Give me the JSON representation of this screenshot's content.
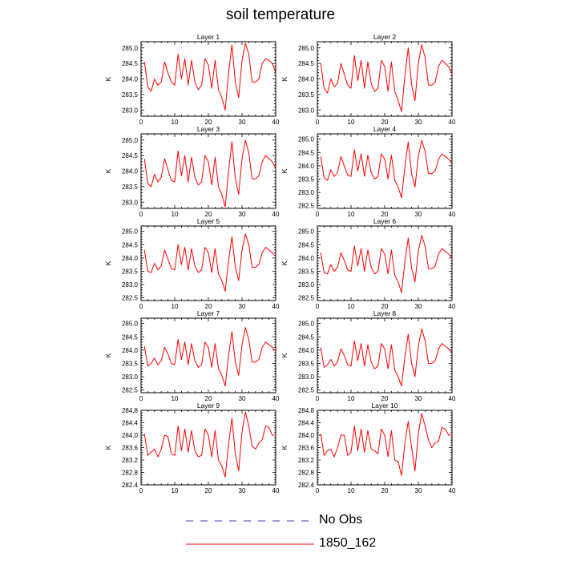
{
  "figure": {
    "title": "soil temperature",
    "legend": [
      {
        "label": "No Obs",
        "color": "#3a3ab0",
        "style": "dashed"
      },
      {
        "label": "1850_162",
        "color": "#ff0000",
        "style": "solid"
      }
    ]
  },
  "chart_data": [
    {
      "type": "line",
      "title": "Layer 1",
      "ylabel": "K",
      "xlim": [
        0,
        40
      ],
      "ylim": [
        282.8,
        285.2
      ],
      "xticks": [
        0,
        10,
        20,
        30,
        40
      ],
      "yticks": [
        283.0,
        283.5,
        284.0,
        284.5,
        285.0
      ],
      "ytick_decimals": 1,
      "series": [
        {
          "color": "#ff0000",
          "x": [
            1,
            2,
            3,
            4,
            5,
            6,
            7,
            8,
            9,
            10,
            11,
            12,
            13,
            14,
            15,
            16,
            17,
            18,
            19,
            20,
            21,
            22,
            23,
            24,
            25,
            26,
            27,
            28,
            29,
            30,
            31,
            32,
            33,
            34,
            35,
            36,
            37,
            38,
            39,
            40
          ],
          "y": [
            284.55,
            283.75,
            283.6,
            284.0,
            283.8,
            283.9,
            284.55,
            284.2,
            283.9,
            283.8,
            284.8,
            284.0,
            284.65,
            283.8,
            284.6,
            283.9,
            283.65,
            283.8,
            284.65,
            284.45,
            283.7,
            284.6,
            283.65,
            283.4,
            283.0,
            284.2,
            285.1,
            283.9,
            283.4,
            284.6,
            285.15,
            284.8,
            283.9,
            283.9,
            284.0,
            284.5,
            284.65,
            284.6,
            284.5,
            284.2
          ]
        }
      ]
    },
    {
      "type": "line",
      "title": "Layer 2",
      "ylabel": "K",
      "xlim": [
        0,
        40
      ],
      "ylim": [
        282.8,
        285.2
      ],
      "xticks": [
        0,
        10,
        20,
        30,
        40
      ],
      "yticks": [
        283.0,
        283.5,
        284.0,
        284.5,
        285.0
      ],
      "ytick_decimals": 1,
      "series": [
        {
          "color": "#ff0000",
          "x": [
            1,
            2,
            3,
            4,
            5,
            6,
            7,
            8,
            9,
            10,
            11,
            12,
            13,
            14,
            15,
            16,
            17,
            18,
            19,
            20,
            21,
            22,
            23,
            24,
            25,
            26,
            27,
            28,
            29,
            30,
            31,
            32,
            33,
            34,
            35,
            36,
            37,
            38,
            39,
            40
          ],
          "y": [
            284.5,
            283.7,
            283.55,
            284.0,
            283.75,
            283.85,
            284.5,
            284.15,
            283.8,
            283.7,
            284.75,
            283.95,
            284.6,
            283.7,
            284.55,
            283.85,
            283.6,
            283.7,
            284.6,
            284.4,
            283.6,
            284.55,
            283.6,
            283.3,
            282.95,
            284.1,
            285.0,
            283.8,
            283.3,
            284.5,
            285.1,
            284.7,
            283.8,
            283.8,
            283.9,
            284.4,
            284.6,
            284.5,
            284.4,
            284.15
          ]
        }
      ]
    },
    {
      "type": "line",
      "title": "Layer 3",
      "ylabel": "K",
      "xlim": [
        0,
        40
      ],
      "ylim": [
        282.8,
        285.2
      ],
      "xticks": [
        0,
        10,
        20,
        30,
        40
      ],
      "yticks": [
        283.0,
        283.5,
        284.0,
        284.5,
        285.0
      ],
      "ytick_decimals": 1,
      "series": [
        {
          "color": "#ff0000",
          "x": [
            1,
            2,
            3,
            4,
            5,
            6,
            7,
            8,
            9,
            10,
            11,
            12,
            13,
            14,
            15,
            16,
            17,
            18,
            19,
            20,
            21,
            22,
            23,
            24,
            25,
            26,
            27,
            28,
            29,
            30,
            31,
            32,
            33,
            34,
            35,
            36,
            37,
            38,
            39,
            40
          ],
          "y": [
            284.4,
            283.6,
            283.5,
            283.9,
            283.65,
            283.8,
            284.4,
            284.05,
            283.7,
            283.65,
            284.65,
            283.85,
            284.5,
            283.65,
            284.45,
            283.8,
            283.55,
            283.65,
            284.5,
            284.3,
            283.55,
            284.45,
            283.5,
            283.25,
            282.85,
            284.0,
            284.95,
            283.75,
            283.25,
            284.4,
            285.0,
            284.6,
            283.75,
            283.75,
            283.85,
            284.3,
            284.5,
            284.4,
            284.3,
            284.1
          ]
        }
      ]
    },
    {
      "type": "line",
      "title": "Layer 4",
      "ylabel": "K",
      "xlim": [
        0,
        40
      ],
      "ylim": [
        282.4,
        285.2
      ],
      "xticks": [
        0,
        10,
        20,
        30,
        40
      ],
      "yticks": [
        282.5,
        283.0,
        283.5,
        284.0,
        284.5,
        285.0
      ],
      "ytick_decimals": 1,
      "series": [
        {
          "color": "#ff0000",
          "x": [
            1,
            2,
            3,
            4,
            5,
            6,
            7,
            8,
            9,
            10,
            11,
            12,
            13,
            14,
            15,
            16,
            17,
            18,
            19,
            20,
            21,
            22,
            23,
            24,
            25,
            26,
            27,
            28,
            29,
            30,
            31,
            32,
            33,
            34,
            35,
            36,
            37,
            38,
            39,
            40
          ],
          "y": [
            284.35,
            283.55,
            283.45,
            283.85,
            283.6,
            283.75,
            284.35,
            284.0,
            283.65,
            283.6,
            284.6,
            283.8,
            284.45,
            283.6,
            284.4,
            283.75,
            283.5,
            283.6,
            284.45,
            284.25,
            283.5,
            284.4,
            283.45,
            283.2,
            282.8,
            283.95,
            284.9,
            283.7,
            283.2,
            284.35,
            284.95,
            284.55,
            283.7,
            283.7,
            283.8,
            284.25,
            284.45,
            284.35,
            284.25,
            284.1
          ]
        }
      ]
    },
    {
      "type": "line",
      "title": "Layer 5",
      "ylabel": "K",
      "xlim": [
        0,
        40
      ],
      "ylim": [
        282.4,
        285.2
      ],
      "xticks": [
        0,
        10,
        20,
        30,
        40
      ],
      "yticks": [
        282.5,
        283.0,
        283.5,
        284.0,
        284.5,
        285.0
      ],
      "ytick_decimals": 1,
      "series": [
        {
          "color": "#ff0000",
          "x": [
            1,
            2,
            3,
            4,
            5,
            6,
            7,
            8,
            9,
            10,
            11,
            12,
            13,
            14,
            15,
            16,
            17,
            18,
            19,
            20,
            21,
            22,
            23,
            24,
            25,
            26,
            27,
            28,
            29,
            30,
            31,
            32,
            33,
            34,
            35,
            36,
            37,
            38,
            39,
            40
          ],
          "y": [
            284.3,
            283.5,
            283.45,
            283.8,
            283.55,
            283.7,
            284.3,
            283.95,
            283.6,
            283.55,
            284.5,
            283.75,
            284.4,
            283.55,
            284.35,
            283.7,
            283.45,
            283.55,
            284.4,
            284.2,
            283.45,
            284.35,
            283.4,
            283.15,
            282.75,
            283.9,
            284.8,
            283.65,
            283.15,
            284.3,
            284.9,
            284.5,
            283.65,
            283.65,
            283.75,
            284.2,
            284.4,
            284.3,
            284.2,
            284.05
          ]
        }
      ]
    },
    {
      "type": "line",
      "title": "Layer 6",
      "ylabel": "K",
      "xlim": [
        0,
        40
      ],
      "ylim": [
        282.4,
        285.2
      ],
      "xticks": [
        0,
        10,
        20,
        30,
        40
      ],
      "yticks": [
        282.5,
        283.0,
        283.5,
        284.0,
        284.5,
        285.0
      ],
      "ytick_decimals": 1,
      "series": [
        {
          "color": "#ff0000",
          "x": [
            1,
            2,
            3,
            4,
            5,
            6,
            7,
            8,
            9,
            10,
            11,
            12,
            13,
            14,
            15,
            16,
            17,
            18,
            19,
            20,
            21,
            22,
            23,
            24,
            25,
            26,
            27,
            28,
            29,
            30,
            31,
            32,
            33,
            34,
            35,
            36,
            37,
            38,
            39,
            40
          ],
          "y": [
            284.2,
            283.45,
            283.4,
            283.75,
            283.5,
            283.65,
            284.2,
            283.9,
            283.55,
            283.5,
            284.45,
            283.7,
            284.35,
            283.5,
            284.3,
            283.65,
            283.4,
            283.5,
            284.35,
            284.15,
            283.4,
            284.3,
            283.35,
            283.1,
            282.7,
            283.85,
            284.75,
            283.6,
            283.1,
            284.25,
            284.85,
            284.45,
            283.6,
            283.6,
            283.7,
            284.15,
            284.35,
            284.25,
            284.15,
            284.0
          ]
        }
      ]
    },
    {
      "type": "line",
      "title": "Layer 7",
      "ylabel": "K",
      "xlim": [
        0,
        40
      ],
      "ylim": [
        282.4,
        285.2
      ],
      "xticks": [
        0,
        10,
        20,
        30,
        40
      ],
      "yticks": [
        282.5,
        283.0,
        283.5,
        284.0,
        284.5,
        285.0
      ],
      "ytick_decimals": 1,
      "series": [
        {
          "color": "#ff0000",
          "x": [
            1,
            2,
            3,
            4,
            5,
            6,
            7,
            8,
            9,
            10,
            11,
            12,
            13,
            14,
            15,
            16,
            17,
            18,
            19,
            20,
            21,
            22,
            23,
            24,
            25,
            26,
            27,
            28,
            29,
            30,
            31,
            32,
            33,
            34,
            35,
            36,
            37,
            38,
            39,
            40
          ],
          "y": [
            284.15,
            283.4,
            283.5,
            283.7,
            283.45,
            283.6,
            284.1,
            283.85,
            283.5,
            283.45,
            284.4,
            283.65,
            284.3,
            283.45,
            284.25,
            283.6,
            283.35,
            283.45,
            284.3,
            284.1,
            283.35,
            284.25,
            283.3,
            283.05,
            282.65,
            283.8,
            284.7,
            283.55,
            283.05,
            284.2,
            284.85,
            284.4,
            283.55,
            283.55,
            283.65,
            284.1,
            284.3,
            284.2,
            284.1,
            283.95
          ]
        }
      ]
    },
    {
      "type": "line",
      "title": "Layer 8",
      "ylabel": "K",
      "xlim": [
        0,
        40
      ],
      "ylim": [
        282.4,
        285.2
      ],
      "xticks": [
        0,
        10,
        20,
        30,
        40
      ],
      "yticks": [
        282.5,
        283.0,
        283.5,
        284.0,
        284.5,
        285.0
      ],
      "ytick_decimals": 1,
      "series": [
        {
          "color": "#ff0000",
          "x": [
            1,
            2,
            3,
            4,
            5,
            6,
            7,
            8,
            9,
            10,
            11,
            12,
            13,
            14,
            15,
            16,
            17,
            18,
            19,
            20,
            21,
            22,
            23,
            24,
            25,
            26,
            27,
            28,
            29,
            30,
            31,
            32,
            33,
            34,
            35,
            36,
            37,
            38,
            39,
            40
          ],
          "y": [
            284.1,
            283.35,
            283.45,
            283.65,
            283.4,
            283.55,
            284.05,
            283.8,
            283.45,
            283.4,
            284.35,
            283.6,
            284.25,
            283.4,
            284.2,
            283.55,
            283.3,
            283.4,
            284.25,
            284.05,
            283.3,
            284.2,
            283.25,
            283.0,
            282.65,
            283.75,
            284.6,
            283.5,
            283.0,
            284.15,
            284.8,
            284.35,
            283.5,
            283.5,
            283.6,
            284.05,
            284.25,
            284.15,
            284.05,
            283.9
          ]
        }
      ]
    },
    {
      "type": "line",
      "title": "Layer 9",
      "ylabel": "K",
      "xlim": [
        0,
        40
      ],
      "ylim": [
        282.4,
        284.8
      ],
      "xticks": [
        0,
        10,
        20,
        30,
        40
      ],
      "yticks": [
        282.4,
        282.8,
        283.2,
        283.6,
        284.0,
        284.4,
        284.8
      ],
      "ytick_decimals": 1,
      "series": [
        {
          "color": "#ff0000",
          "x": [
            1,
            2,
            3,
            4,
            5,
            6,
            7,
            8,
            9,
            10,
            11,
            12,
            13,
            14,
            15,
            16,
            17,
            18,
            19,
            20,
            21,
            22,
            23,
            24,
            25,
            26,
            27,
            28,
            29,
            30,
            31,
            32,
            33,
            34,
            35,
            36,
            37,
            38,
            39,
            40
          ],
          "y": [
            284.05,
            283.35,
            283.45,
            283.55,
            283.3,
            283.55,
            284.0,
            283.95,
            283.4,
            283.35,
            284.3,
            283.5,
            284.2,
            283.45,
            284.15,
            283.5,
            283.3,
            283.35,
            284.2,
            284.0,
            283.3,
            284.15,
            283.2,
            283.0,
            282.65,
            283.7,
            284.55,
            283.4,
            282.85,
            284.1,
            284.75,
            284.3,
            283.65,
            283.55,
            283.75,
            283.85,
            284.3,
            284.25,
            284.0,
            284.0
          ]
        }
      ]
    },
    {
      "type": "line",
      "title": "Layer 10",
      "ylabel": "K",
      "xlim": [
        0,
        40
      ],
      "ylim": [
        282.4,
        284.8
      ],
      "xticks": [
        0,
        10,
        20,
        30,
        40
      ],
      "yticks": [
        282.4,
        282.8,
        283.2,
        283.6,
        284.0,
        284.4,
        284.8
      ],
      "ytick_decimals": 1,
      "series": [
        {
          "color": "#ff0000",
          "x": [
            1,
            2,
            3,
            4,
            5,
            6,
            7,
            8,
            9,
            10,
            11,
            12,
            13,
            14,
            15,
            16,
            17,
            18,
            19,
            20,
            21,
            22,
            23,
            24,
            25,
            26,
            27,
            28,
            29,
            30,
            31,
            32,
            33,
            34,
            35,
            36,
            37,
            38,
            39,
            40
          ],
          "y": [
            284.05,
            283.35,
            283.5,
            283.55,
            283.3,
            283.6,
            284.0,
            284.0,
            283.35,
            283.45,
            284.3,
            283.5,
            284.2,
            283.45,
            284.15,
            283.55,
            283.5,
            283.4,
            284.2,
            284.0,
            283.3,
            284.15,
            283.2,
            283.15,
            282.7,
            283.75,
            284.45,
            283.6,
            282.85,
            284.05,
            284.7,
            284.3,
            283.85,
            283.6,
            283.75,
            283.8,
            284.25,
            284.2,
            284.0,
            284.0
          ]
        }
      ]
    }
  ]
}
